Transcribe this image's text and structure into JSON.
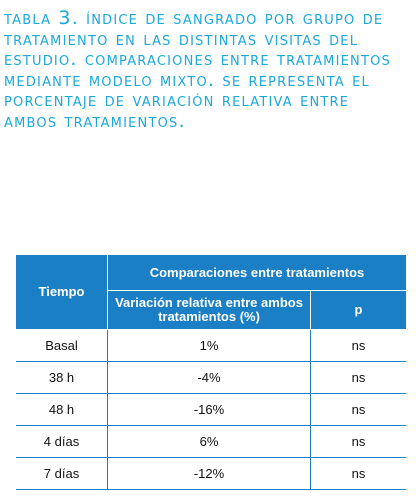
{
  "caption": "Tabla 3. Índice de sangrado por grupo de tratamiento en las distintas visitas del estudio. Comparaciones entre tratamientos mediante modelo mixto. Se representa el porcentaje de variación relativa entre ambos tratamientos.",
  "table": {
    "header": {
      "tiempo": "Tiempo",
      "comparaciones": "Comparaciones entre tratamientos",
      "variacion": "Variación relativa entre ambos tratamientos (%)",
      "p": "p"
    },
    "rows": [
      {
        "tiempo": "Basal",
        "variacion": "1%",
        "p": "ns"
      },
      {
        "tiempo": "38 h",
        "variacion": "-4%",
        "p": "ns"
      },
      {
        "tiempo": "48 h",
        "variacion": "-16%",
        "p": "ns"
      },
      {
        "tiempo": "4 días",
        "variacion": "6%",
        "p": "ns"
      },
      {
        "tiempo": "7 días",
        "variacion": "-12%",
        "p": "ns"
      }
    ]
  },
  "colors": {
    "caption": "#1ba8dc",
    "header_bg": "#1a7fc4",
    "border": "#1a7fc4"
  }
}
